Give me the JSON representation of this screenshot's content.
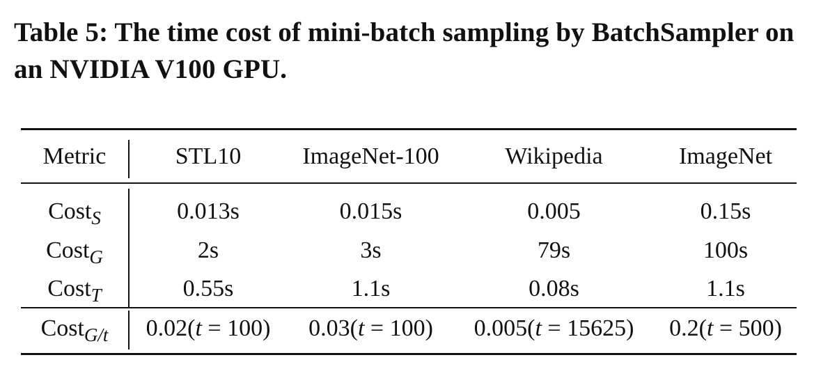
{
  "caption": "Table 5: The time cost of mini-batch sampling by BatchSampler on an NVIDIA V100 GPU.",
  "table": {
    "headers": [
      "Metric",
      "STL10",
      "ImageNet-100",
      "Wikipedia",
      "ImageNet"
    ],
    "rows": [
      {
        "metric": {
          "base": "Cost",
          "sub": "S"
        },
        "cells": [
          "0.013s",
          "0.015s",
          "0.005",
          "0.15s"
        ]
      },
      {
        "metric": {
          "base": "Cost",
          "sub": "G"
        },
        "cells": [
          "2s",
          "3s",
          "79s",
          "100s"
        ]
      },
      {
        "metric": {
          "base": "Cost",
          "sub": "T"
        },
        "cells": [
          "0.55s",
          "1.1s",
          "0.08s",
          "1.1s"
        ]
      },
      {
        "metric": {
          "base": "Cost",
          "sub": "G/t"
        },
        "cells": [
          {
            "value": "0.02",
            "var": "t",
            "eq": " = 100)"
          },
          {
            "value": "0.03",
            "var": "t",
            "eq": " = 100)"
          },
          {
            "value": "0.005",
            "var": "t",
            "eq": " = 15625)"
          },
          {
            "value": "0.2",
            "var": "t",
            "eq": " = 500)"
          }
        ]
      }
    ]
  }
}
